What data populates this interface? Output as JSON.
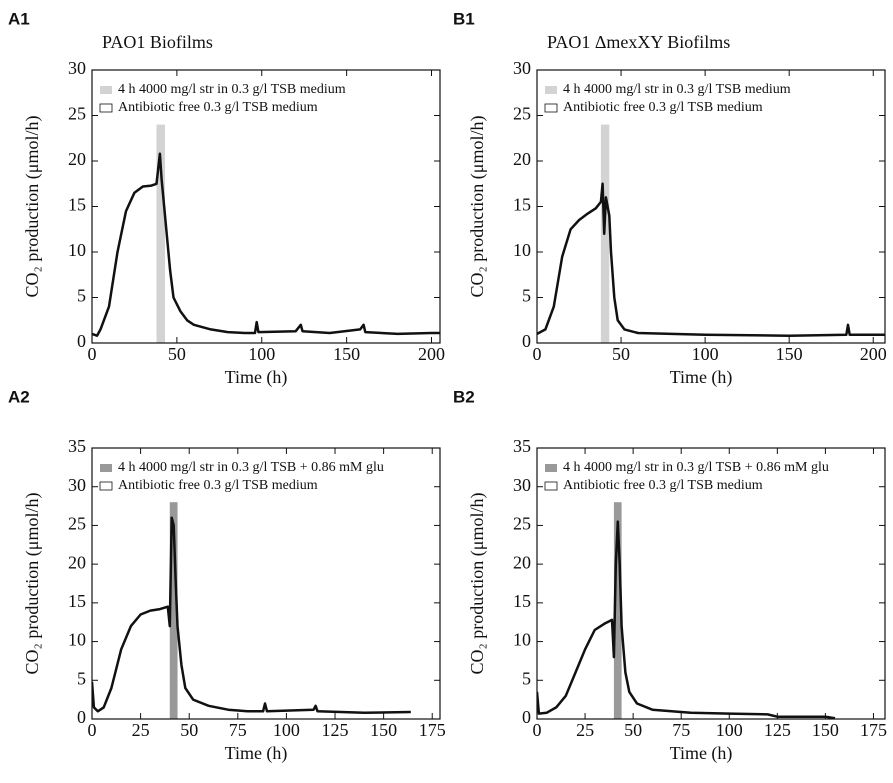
{
  "chart_data": [
    {
      "type": "line",
      "panel": "A1",
      "title": "PAO1 Biofilms",
      "xlabel": "Time (h)",
      "ylabel": "CO₂ production (μmol/h)",
      "xlim": [
        0,
        205
      ],
      "ylim": [
        0,
        30
      ],
      "xticks": [
        0,
        50,
        100,
        150,
        200
      ],
      "yticks": [
        0,
        5,
        10,
        15,
        20,
        25,
        30
      ],
      "band": {
        "name": "4 h 4000 mg/l str in 0.3 g/l TSB medium",
        "color": "#d3d3d3",
        "xrange": [
          38,
          43
        ],
        "top": 24
      },
      "series": [
        {
          "name": "Antibiotic free 0.3 g/l TSB medium",
          "color": "#111111",
          "x": [
            0,
            3,
            5,
            10,
            15,
            20,
            25,
            30,
            35,
            38,
            40,
            41,
            42,
            44,
            46,
            48,
            52,
            56,
            60,
            70,
            80,
            90,
            96,
            97,
            98,
            120,
            123,
            124,
            140,
            158,
            160,
            161,
            180,
            200,
            205
          ],
          "values": [
            1,
            0.8,
            1.5,
            4,
            10,
            14.5,
            16.5,
            17.2,
            17.3,
            17.5,
            20.8,
            18,
            16,
            12,
            8,
            5,
            3.5,
            2.5,
            2,
            1.5,
            1.2,
            1.1,
            1.1,
            2.3,
            1.2,
            1.3,
            2,
            1.3,
            1.1,
            1.5,
            2,
            1.2,
            1,
            1.1,
            1.1
          ]
        }
      ]
    },
    {
      "type": "line",
      "panel": "B1",
      "title": "PAO1 ΔmexXY Biofilms",
      "xlabel": "Time (h)",
      "ylabel": "CO₂ production (μmol/h)",
      "xlim": [
        0,
        207
      ],
      "ylim": [
        0,
        30
      ],
      "xticks": [
        0,
        50,
        100,
        150,
        200
      ],
      "yticks": [
        0,
        5,
        10,
        15,
        20,
        25,
        30
      ],
      "band": {
        "name": "4 h 4000 mg/l str in 0.3 g/l TSB medium",
        "color": "#d3d3d3",
        "xrange": [
          38,
          43
        ],
        "top": 24
      },
      "series": [
        {
          "name": "Antibiotic free 0.3 g/l TSB medium",
          "color": "#111111",
          "x": [
            0,
            5,
            10,
            15,
            20,
            25,
            30,
            35,
            38,
            39,
            40,
            41,
            43,
            44,
            46,
            48,
            52,
            60,
            80,
            100,
            150,
            184,
            185,
            186,
            207
          ],
          "values": [
            1,
            1.5,
            4,
            9.5,
            12.5,
            13.5,
            14.2,
            14.8,
            15.5,
            17.5,
            12,
            16,
            14,
            10,
            5,
            2.5,
            1.5,
            1.1,
            1,
            0.9,
            0.8,
            0.9,
            2,
            0.9,
            0.9
          ]
        }
      ]
    },
    {
      "type": "line",
      "panel": "A2",
      "xlabel": "Time (h)",
      "ylabel": "CO₂ production (μmol/h)",
      "xlim": [
        0,
        179
      ],
      "ylim": [
        0,
        35
      ],
      "xticks": [
        0,
        25,
        50,
        75,
        100,
        125,
        150,
        175
      ],
      "yticks": [
        0,
        5,
        10,
        15,
        20,
        25,
        30,
        35
      ],
      "band": {
        "name": "4 h 4000 mg/l str in 0.3 g/l TSB + 0.86 mM glu",
        "color": "#999999",
        "xrange": [
          40,
          44
        ],
        "top": 28
      },
      "series": [
        {
          "name": "Antibiotic free 0.3 g/l TSB medium",
          "color": "#111111",
          "x": [
            0,
            1,
            3,
            6,
            10,
            15,
            20,
            25,
            30,
            35,
            39,
            40,
            41,
            42,
            43,
            44,
            46,
            48,
            52,
            60,
            70,
            80,
            88,
            89,
            90,
            114,
            115,
            116,
            140,
            164
          ],
          "values": [
            4.8,
            1.5,
            1,
            1.5,
            4,
            9,
            12,
            13.5,
            14,
            14.2,
            14.5,
            12,
            26,
            25,
            18,
            12,
            7,
            4,
            2.5,
            1.7,
            1.2,
            1,
            1,
            2,
            1,
            1.2,
            1.7,
            1,
            0.8,
            0.9
          ]
        }
      ]
    },
    {
      "type": "line",
      "panel": "B2",
      "xlabel": "Time (h)",
      "ylabel": "CO₂ production (μmol/h)",
      "xlim": [
        0,
        181
      ],
      "ylim": [
        0,
        35
      ],
      "xticks": [
        0,
        25,
        50,
        75,
        100,
        125,
        150,
        175
      ],
      "yticks": [
        0,
        5,
        10,
        15,
        20,
        25,
        30,
        35
      ],
      "band": {
        "name": "4 h 4000 mg/l str in 0.3 g/l TSB + 0.86 mM glu",
        "color": "#999999",
        "xrange": [
          40,
          44
        ],
        "top": 28
      },
      "series": [
        {
          "name": "Antibiotic free 0.3 g/l TSB medium",
          "color": "#111111",
          "x": [
            0,
            1,
            5,
            10,
            15,
            20,
            25,
            30,
            35,
            39,
            40,
            41,
            42,
            43,
            44,
            46,
            48,
            52,
            60,
            80,
            100,
            120,
            125,
            150,
            155
          ],
          "values": [
            3.5,
            0.7,
            0.8,
            1.5,
            3,
            6,
            9,
            11.5,
            12.3,
            12.8,
            8,
            20,
            25.5,
            20,
            12,
            6,
            3.5,
            2,
            1.2,
            0.8,
            0.7,
            0.6,
            0.3,
            0.3,
            0.1
          ]
        }
      ]
    }
  ]
}
